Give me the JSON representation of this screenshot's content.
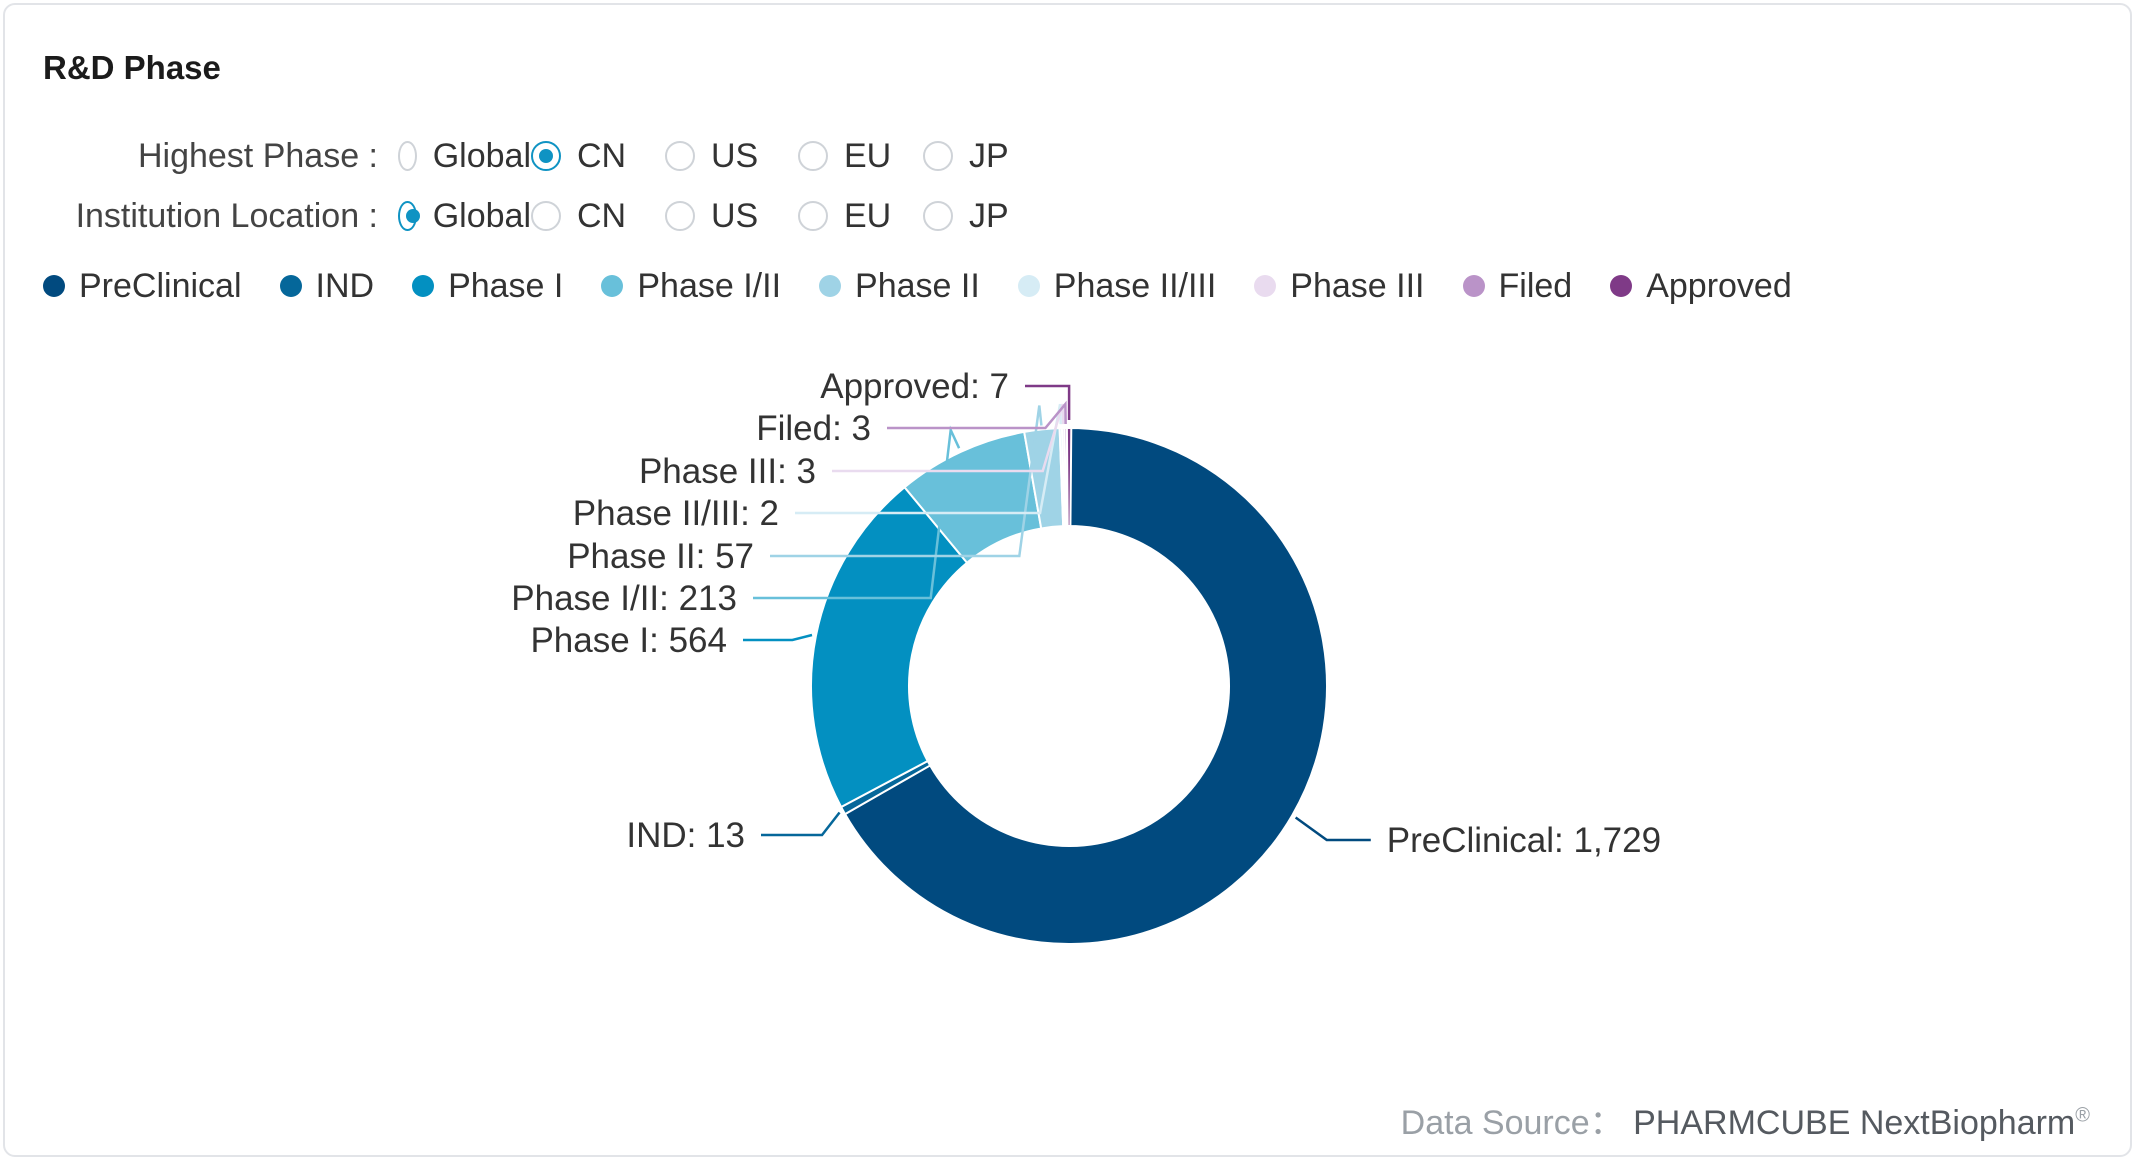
{
  "title": "R&D Phase",
  "filters": [
    {
      "label": "Highest Phase :",
      "options": [
        "Global",
        "CN",
        "US",
        "EU",
        "JP"
      ],
      "selected": 1
    },
    {
      "label": "Institution Location :",
      "options": [
        "Global",
        "CN",
        "US",
        "EU",
        "JP"
      ],
      "selected": 0
    }
  ],
  "footer": {
    "prefix": "Data Source：",
    "brand": "PHARMCUBE NextBiopharm",
    "mark": "®"
  },
  "chart_data": {
    "type": "pie",
    "donut": true,
    "legend_position": "top-left",
    "categories": [
      "PreClinical",
      "IND",
      "Phase I",
      "Phase I/II",
      "Phase II",
      "Phase II/III",
      "Phase III",
      "Filed",
      "Approved"
    ],
    "values": [
      1729,
      13,
      564,
      213,
      57,
      2,
      3,
      3,
      7
    ],
    "value_labels": [
      "1,729",
      "13",
      "564",
      "213",
      "57",
      "2",
      "3",
      "3",
      "7"
    ],
    "colors": [
      "#014a7f",
      "#05679a",
      "#0390c1",
      "#68c0da",
      "#9fd3e6",
      "#d6ecf5",
      "#e9dbef",
      "#ba93c8",
      "#7f3a87"
    ]
  }
}
